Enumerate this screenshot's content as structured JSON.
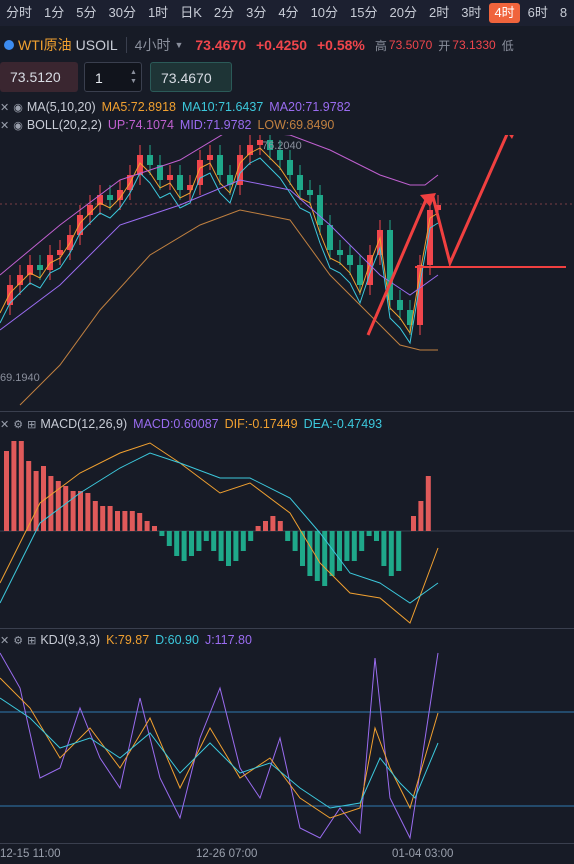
{
  "timeframes": [
    "分时",
    "1分",
    "5分",
    "30分",
    "1时",
    "日K",
    "2分",
    "3分",
    "4分",
    "10分",
    "15分",
    "20分",
    "2时",
    "3时",
    "4时",
    "6时",
    "8"
  ],
  "active_timeframe": "4时",
  "symbol": {
    "name": "WTI原油",
    "code": "USOIL",
    "period": "4小时",
    "price": "73.4670",
    "change": "+0.4250",
    "change_pct": "+0.58%",
    "high_label": "高",
    "high": "73.5070",
    "open_label": "开",
    "open": "73.1330",
    "low_label": "低"
  },
  "order": {
    "sell_price": "73.5120",
    "quantity": "1",
    "buy_price": "73.4670"
  },
  "ma_legend": {
    "label": "MA(5,10,20)",
    "ma5": "MA5:72.8918",
    "ma10": "MA10:71.6437",
    "ma20": "MA20:71.9782"
  },
  "boll_legend": {
    "label": "BOLL(20,2,2)",
    "up": "UP:74.1074",
    "mid": "MID:71.9782",
    "low": "LOW:69.8490"
  },
  "price_marks": {
    "high": "76.2040",
    "low": "69.1940"
  },
  "macd_legend": {
    "label": "MACD(12,26,9)",
    "macd": "MACD:0.60087",
    "dif": "DIF:-0.17449",
    "dea": "DEA:-0.47493"
  },
  "kdj_legend": {
    "label": "KDJ(9,3,3)",
    "k": "K:79.87",
    "d": "D:60.90",
    "j": "J:117.80"
  },
  "time_labels": [
    "12-15 11:00",
    "12-26 07:00",
    "01-04 03:00"
  ],
  "colors": {
    "up": "#f0464c",
    "down": "#1fa88a",
    "ma5": "#f0a030",
    "ma10": "#3cc8dc",
    "ma20": "#9a6cf0",
    "boll_up": "#c060d0",
    "boll_low": "#c08040",
    "accent": "#f0643c"
  }
}
